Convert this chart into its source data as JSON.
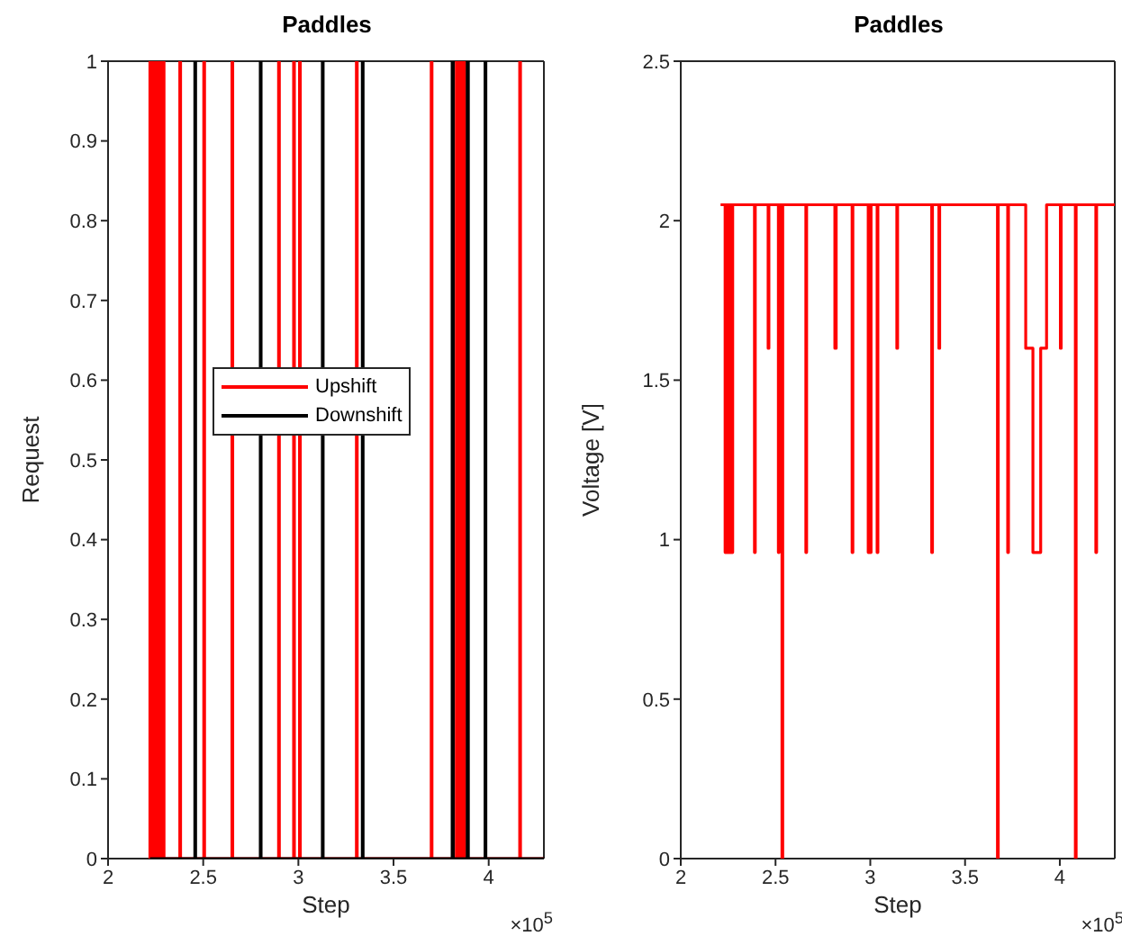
{
  "chart_data": [
    {
      "type": "line",
      "title": "Paddles",
      "xlabel": "Step",
      "ylabel": "Request",
      "annotations": [
        "×10$^{5}$"
      ],
      "xlim": [
        2,
        4.29
      ],
      "xticks": [
        2,
        2.5,
        3,
        3.5,
        4
      ],
      "ylim": [
        0,
        1
      ],
      "yticks": [
        0,
        0.1,
        0.2,
        0.3,
        0.4,
        0.5,
        0.6,
        0.7,
        0.8,
        0.9,
        1
      ],
      "legend": "left",
      "marker": "none",
      "line_style": "solid",
      "series": [
        {
          "name": "Upshift",
          "color": "#ff0000",
          "x": [
            2.22,
            2.22,
            2.224,
            2.224,
            2.235,
            2.235,
            2.239,
            2.239,
            2.25,
            2.25,
            2.254,
            2.254,
            2.265,
            2.265,
            2.269,
            2.269,
            2.28,
            2.28,
            2.284,
            2.284,
            2.29,
            2.29,
            2.294,
            2.294,
            2.377,
            2.377,
            2.381,
            2.381,
            2.503,
            2.503,
            2.507,
            2.507,
            2.651,
            2.651,
            2.655,
            2.655,
            2.896,
            2.896,
            2.9,
            2.9,
            2.975,
            2.975,
            2.979,
            2.979,
            3.006,
            3.006,
            3.01,
            3.01,
            3.305,
            3.305,
            3.309,
            3.309,
            3.698,
            3.698,
            3.702,
            3.702,
            3.83,
            3.83,
            3.834,
            3.834,
            3.84,
            3.84,
            3.844,
            3.844,
            3.85,
            3.85,
            3.854,
            3.854,
            3.86,
            3.86,
            3.864,
            3.864,
            3.87,
            3.87,
            3.874,
            3.874,
            4.163,
            4.163,
            4.167,
            4.167,
            4.29
          ],
          "values": [
            0,
            1,
            1,
            0,
            0,
            1,
            1,
            0,
            0,
            1,
            1,
            0,
            0,
            1,
            1,
            0,
            0,
            1,
            1,
            0,
            0,
            1,
            1,
            0,
            0,
            1,
            1,
            0,
            0,
            1,
            1,
            0,
            0,
            1,
            1,
            0,
            0,
            1,
            1,
            0,
            0,
            1,
            1,
            0,
            0,
            1,
            1,
            0,
            0,
            1,
            1,
            0,
            0,
            1,
            1,
            0,
            0,
            1,
            1,
            0,
            0,
            1,
            1,
            0,
            0,
            1,
            1,
            0,
            0,
            1,
            1,
            0,
            0,
            1,
            1,
            0,
            0,
            1,
            1,
            0,
            0
          ]
        },
        {
          "name": "Downshift",
          "color": "#000000",
          "x": [
            2.22,
            2.456,
            2.456,
            2.46,
            2.46,
            2.8,
            2.8,
            2.804,
            2.804,
            3.126,
            3.126,
            3.13,
            3.13,
            3.336,
            3.336,
            3.34,
            3.34,
            3.808,
            3.808,
            3.814,
            3.814,
            3.887,
            3.887,
            3.893,
            3.893,
            3.981,
            3.981,
            3.985,
            3.985,
            4.29
          ],
          "values": [
            0,
            0,
            1,
            1,
            0,
            0,
            1,
            1,
            0,
            0,
            1,
            1,
            0,
            0,
            1,
            1,
            0,
            0,
            1,
            1,
            0,
            0,
            1,
            1,
            0,
            0,
            1,
            1,
            0,
            0
          ]
        }
      ]
    },
    {
      "type": "line",
      "title": "Paddles",
      "xlabel": "Step",
      "ylabel": "Voltage [V]",
      "annotations": [
        "×10$^{5}$"
      ],
      "xlim": [
        2,
        4.29
      ],
      "xticks": [
        2,
        2.5,
        3,
        3.5,
        4
      ],
      "ylim": [
        0,
        2.5
      ],
      "yticks": [
        0,
        0.5,
        1,
        1.5,
        2,
        2.5
      ],
      "marker": "none",
      "line_style": "solid",
      "series": [
        {
          "color": "#ff0000",
          "x": [
            2.21,
            2.234,
            2.234,
            2.238,
            2.238,
            2.247,
            2.247,
            2.251,
            2.251,
            2.26,
            2.26,
            2.264,
            2.264,
            2.27,
            2.27,
            2.274,
            2.274,
            2.389,
            2.389,
            2.393,
            2.393,
            2.461,
            2.461,
            2.465,
            2.465,
            2.515,
            2.515,
            2.519,
            2.519,
            2.534,
            2.534,
            2.538,
            2.538,
            2.66,
            2.66,
            2.664,
            2.664,
            2.813,
            2.813,
            2.82,
            2.82,
            2.904,
            2.904,
            2.908,
            2.908,
            2.989,
            2.989,
            2.993,
            2.993,
            3,
            3,
            3.004,
            3.004,
            3.036,
            3.036,
            3.04,
            3.04,
            3.14,
            3.14,
            3.144,
            3.144,
            3.324,
            3.324,
            3.328,
            3.328,
            3.362,
            3.362,
            3.366,
            3.366,
            3.671,
            3.671,
            3.675,
            3.675,
            3.725,
            3.725,
            3.729,
            3.729,
            3.82,
            3.82,
            3.858,
            3.858,
            3.899,
            3.899,
            3.93,
            3.93,
            4.003,
            4.003,
            4.007,
            4.007,
            4.082,
            4.082,
            4.086,
            4.086,
            4.19,
            4.19,
            4.194,
            4.194,
            4.29
          ],
          "values": [
            2.05,
            2.05,
            0.96,
            0.96,
            2.05,
            2.05,
            0.96,
            0.96,
            2.05,
            2.05,
            0.96,
            0.96,
            2.05,
            2.05,
            0.96,
            0.96,
            2.05,
            2.05,
            0.96,
            0.96,
            2.05,
            2.05,
            1.6,
            1.6,
            2.05,
            2.05,
            0.96,
            0.96,
            2.05,
            2.05,
            0,
            0,
            2.05,
            2.05,
            0.96,
            0.96,
            2.05,
            2.05,
            1.6,
            1.6,
            2.05,
            2.05,
            0.96,
            0.96,
            2.05,
            2.05,
            0.96,
            0.96,
            2.05,
            2.05,
            0.96,
            0.96,
            2.05,
            2.05,
            0.96,
            0.96,
            2.05,
            2.05,
            1.6,
            1.6,
            2.05,
            2.05,
            0.96,
            0.96,
            2.05,
            2.05,
            1.6,
            1.6,
            2.05,
            2.05,
            0,
            0,
            2.05,
            2.05,
            0.96,
            0.96,
            2.05,
            2.05,
            1.6,
            1.6,
            0.96,
            0.96,
            1.6,
            1.6,
            2.05,
            2.05,
            1.6,
            1.6,
            2.05,
            2.05,
            0,
            0,
            2.05,
            2.05,
            0.96,
            0.96,
            2.05,
            2.05
          ]
        }
      ]
    }
  ]
}
